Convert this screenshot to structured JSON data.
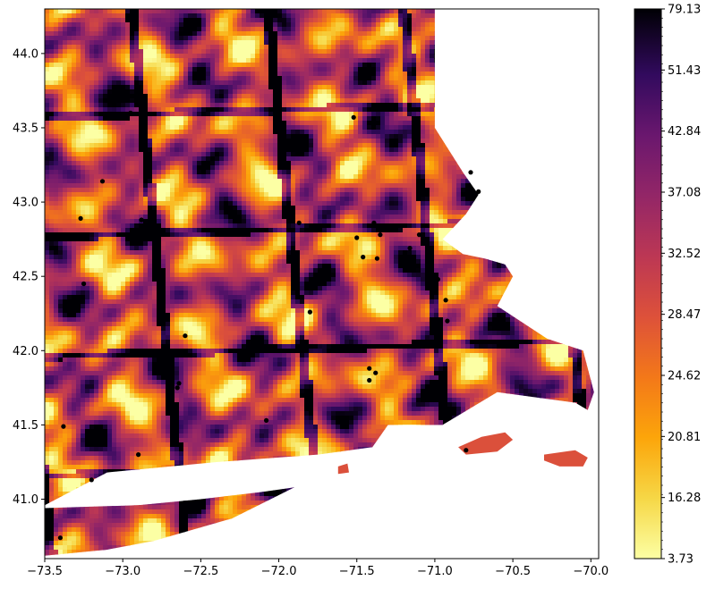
{
  "chart_data": {
    "type": "heatmap",
    "title": "",
    "xlabel": "",
    "ylabel": "",
    "xlim": [
      -73.5,
      -69.95
    ],
    "ylim": [
      40.6,
      44.3
    ],
    "x_ticks": [
      -73.5,
      -73.0,
      -72.5,
      -72.0,
      -71.5,
      -71.0,
      -70.5,
      -70.0
    ],
    "x_tick_labels": [
      "−73.5",
      "−73.0",
      "−72.5",
      "−72.0",
      "−71.5",
      "−71.0",
      "−70.5",
      "−70.0"
    ],
    "y_ticks": [
      41.0,
      41.5,
      42.0,
      42.5,
      43.0,
      43.5,
      44.0
    ],
    "y_tick_labels": [
      "41.0",
      "41.5",
      "42.0",
      "42.5",
      "43.0",
      "43.5",
      "44.0"
    ],
    "grid": false,
    "colorbar": {
      "colormap": "inferno_r",
      "tick_labels": [
        "3.73",
        "16.28",
        "20.81",
        "24.62",
        "28.47",
        "32.52",
        "37.08",
        "42.84",
        "51.43",
        "79.13"
      ],
      "tick_values": [
        3.73,
        16.28,
        20.81,
        24.62,
        28.47,
        32.52,
        37.08,
        42.84,
        51.43,
        79.13
      ],
      "range": [
        3.73,
        79.13
      ],
      "scale": "quantile"
    },
    "region_outline": {
      "mainland_lon": [
        -73.5,
        -71.0,
        -71.0,
        -70.82,
        -70.72,
        -70.8,
        -70.95,
        -70.82,
        -70.68,
        -70.55,
        -70.5,
        -70.6,
        -70.28,
        -70.05,
        -69.98,
        -70.02,
        -70.1,
        -70.6,
        -70.95,
        -71.3,
        -71.4,
        -71.75,
        -72.4,
        -73.1,
        -73.5,
        -73.5
      ],
      "mainland_lat": [
        44.3,
        44.3,
        43.5,
        43.2,
        43.05,
        42.92,
        42.75,
        42.65,
        42.62,
        42.58,
        42.5,
        42.3,
        42.08,
        42.0,
        41.72,
        41.6,
        41.65,
        41.72,
        41.5,
        41.5,
        41.35,
        41.3,
        41.25,
        41.18,
        40.96,
        44.3
      ],
      "long_island_lon": [
        -73.5,
        -72.9,
        -72.5,
        -72.1,
        -71.9,
        -72.3,
        -72.8,
        -73.1,
        -73.5
      ],
      "long_island_lat": [
        40.94,
        40.96,
        41.0,
        41.05,
        41.08,
        40.87,
        40.72,
        40.66,
        40.62
      ]
    },
    "islands": [
      {
        "lon": [
          -70.85,
          -70.7,
          -70.55,
          -70.5,
          -70.6,
          -70.8
        ],
        "lat": [
          41.35,
          41.42,
          41.45,
          41.4,
          41.32,
          41.3
        ]
      },
      {
        "lon": [
          -70.3,
          -70.1,
          -70.02,
          -70.05,
          -70.2,
          -70.3
        ],
        "lat": [
          41.3,
          41.33,
          41.28,
          41.22,
          41.22,
          41.26
        ]
      },
      {
        "lon": [
          -71.62,
          -71.56,
          -71.55,
          -71.62
        ],
        "lat": [
          41.22,
          41.24,
          41.18,
          41.17
        ]
      }
    ],
    "stations": {
      "lon": [
        -72.95,
        -73.13,
        -73.27,
        -73.25,
        -72.6,
        -72.64,
        -72.65,
        -72.08,
        -72.9,
        -73.4,
        -73.38,
        -72.88,
        -71.87,
        -71.8,
        -71.52,
        -71.39,
        -71.5,
        -71.46,
        -71.37,
        -71.35,
        -71.1,
        -71.16,
        -70.98,
        -70.93,
        -70.92,
        -70.77,
        -70.72,
        -71.42,
        -71.38,
        -71.42,
        -70.8,
        -73.2
      ],
      "lat": [
        43.6,
        43.14,
        42.89,
        42.45,
        42.1,
        41.78,
        41.75,
        41.53,
        41.3,
        40.74,
        41.49,
        42.88,
        42.86,
        42.26,
        43.57,
        42.86,
        42.76,
        42.63,
        42.62,
        42.78,
        42.78,
        42.69,
        42.48,
        42.34,
        42.2,
        43.2,
        43.07,
        41.8,
        41.85,
        41.88,
        41.33,
        41.13
      ]
    }
  }
}
